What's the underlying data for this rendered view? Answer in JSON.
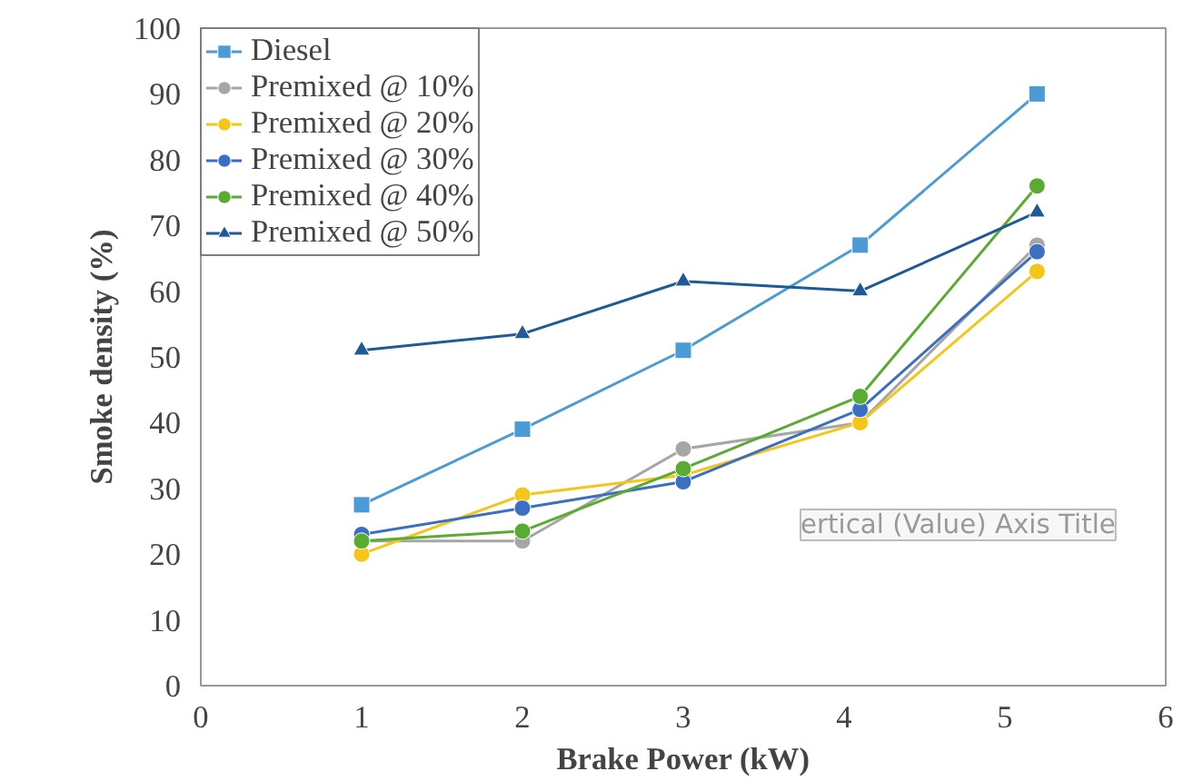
{
  "chart_data": {
    "type": "line",
    "xlabel": "Brake Power (kW)",
    "ylabel": "Smoke density (%)",
    "annotations": [
      "ertical (Value) Axis Title"
    ],
    "x": [
      1,
      2,
      3,
      4.1,
      5.2
    ],
    "series": [
      {
        "name": "Diesel",
        "color": "#4a9bd6",
        "marker": "square",
        "values": [
          27.5,
          39,
          51,
          67,
          90
        ]
      },
      {
        "name": "Premixed @ 10%",
        "color": "#a6a6a6",
        "marker": "circle",
        "values": [
          22,
          22,
          36,
          40,
          67
        ]
      },
      {
        "name": "Premixed @ 20%",
        "color": "#f5c518",
        "marker": "circle",
        "values": [
          20,
          29,
          32,
          40,
          63
        ]
      },
      {
        "name": "Premixed @ 30%",
        "color": "#3a6fc4",
        "marker": "circle",
        "values": [
          23,
          27,
          31,
          42,
          66
        ]
      },
      {
        "name": "Premixed @ 40%",
        "color": "#5aab32",
        "marker": "circle",
        "values": [
          22,
          23.5,
          33,
          44,
          76
        ]
      },
      {
        "name": "Premixed @ 50%",
        "color": "#1f5a96",
        "marker": "triangle",
        "values": [
          51,
          53.5,
          61.5,
          60,
          72
        ]
      }
    ],
    "xlim": [
      0,
      6
    ],
    "xticks": [
      0,
      1,
      2,
      3,
      4,
      5,
      6
    ],
    "ylim": [
      0,
      100
    ],
    "yticks": [
      0,
      10,
      20,
      30,
      40,
      50,
      60,
      70,
      80,
      90,
      100
    ],
    "grid": false,
    "legend": "top left",
    "line_style": "solid"
  }
}
